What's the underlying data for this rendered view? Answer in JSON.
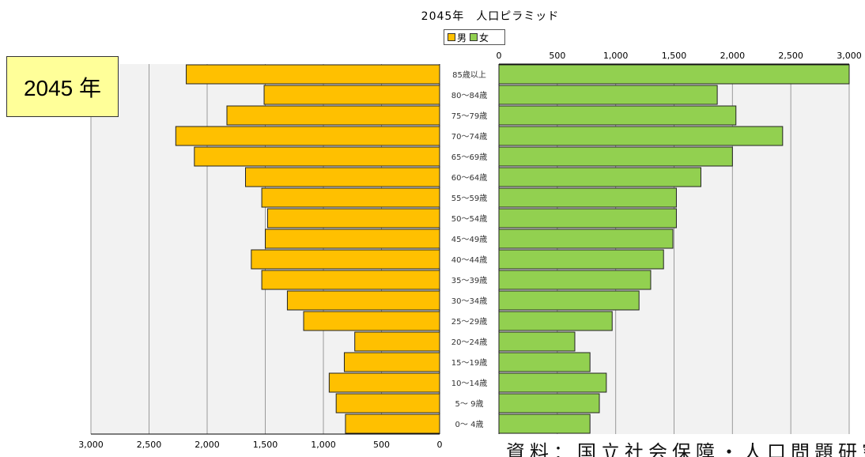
{
  "badge": {
    "year_label": "2045 年"
  },
  "source": {
    "note": "資料：国立社会保障・人口問題研究所"
  },
  "chart_data": {
    "type": "bar",
    "orientation": "horizontal-pyramid",
    "title": "2045年　人口ピラミッド",
    "legend": {
      "position": "top-center",
      "male_label": "男",
      "female_label": "女"
    },
    "categories": [
      "0～ 4歳",
      "5～ 9歳",
      "10～14歳",
      "15～19歳",
      "20～24歳",
      "25～29歳",
      "30～34歳",
      "35～39歳",
      "40～44歳",
      "45～49歳",
      "50～54歳",
      "55～59歳",
      "60～64歳",
      "65～69歳",
      "70～74歳",
      "75～79歳",
      "80～84歳",
      "85歳以上"
    ],
    "series": [
      {
        "name": "男",
        "color": "#ffc000",
        "values": [
          810,
          890,
          950,
          820,
          730,
          1170,
          1310,
          1530,
          1620,
          1500,
          1480,
          1530,
          1670,
          2110,
          2270,
          1830,
          1510,
          2180
        ]
      },
      {
        "name": "女",
        "color": "#92d050",
        "values": [
          780,
          860,
          920,
          780,
          650,
          970,
          1200,
          1300,
          1410,
          1490,
          1520,
          1520,
          1730,
          2000,
          2430,
          2030,
          1870,
          3000
        ]
      }
    ],
    "x_ticks_male": [
      "3,000",
      "2,500",
      "2,000",
      "1,500",
      "1,000",
      "500",
      "0"
    ],
    "x_ticks_female": [
      "0",
      "500",
      "1,000",
      "1,500",
      "2,000",
      "2,500",
      "3,000"
    ],
    "xlim": [
      0,
      3000
    ],
    "grid": true
  }
}
